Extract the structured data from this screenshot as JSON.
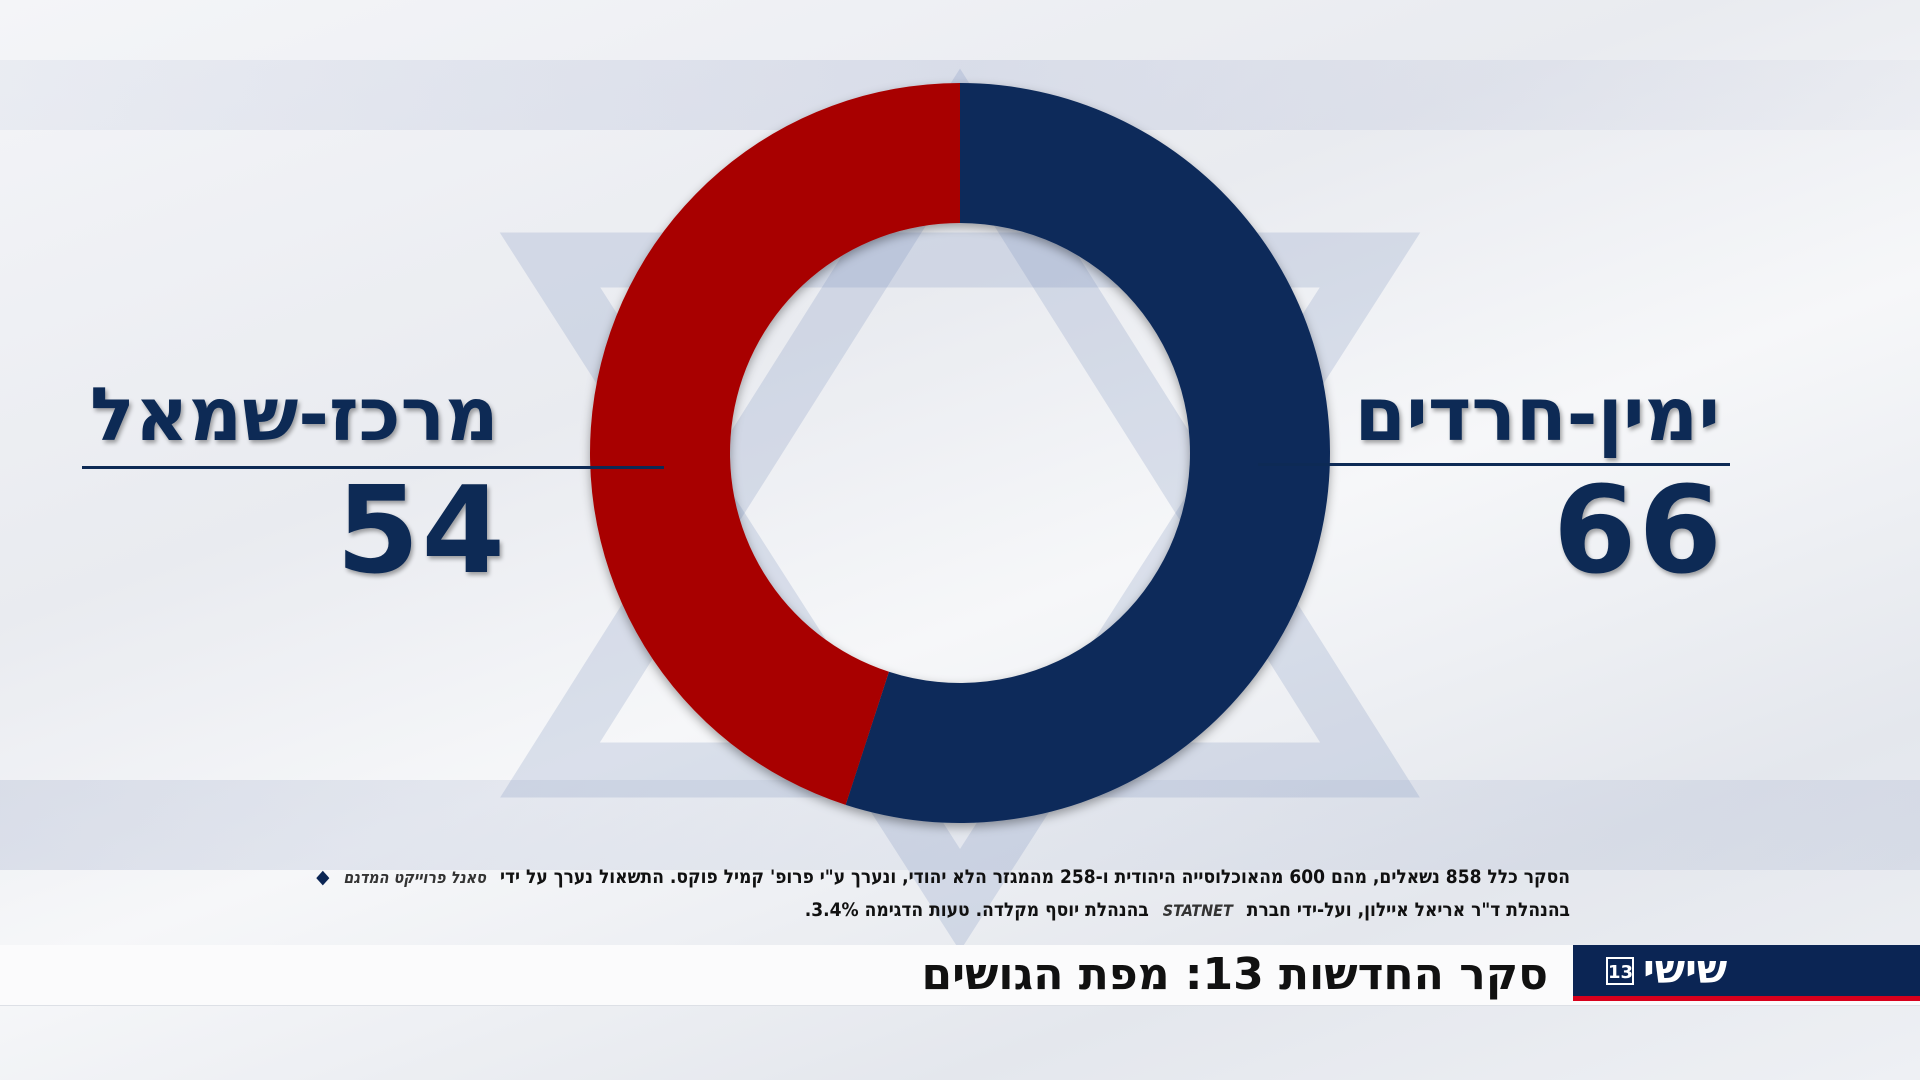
{
  "chart_data": {
    "type": "pie",
    "series": [
      {
        "name": "ימין-חרדים",
        "value": 66,
        "color": "#0d2a5a"
      },
      {
        "name": "מרכז-שמאל",
        "value": 54,
        "color": "#a80000"
      }
    ]
  },
  "labels": {
    "right_name": "ימין-חרדים",
    "right_value": "66",
    "left_name": "מרכז-שמאל",
    "left_value": "54"
  },
  "footnote": {
    "line1_text": "הסקר כלל 858 נשאלים, מהם 600 מהאוכלוסייה היהודית ו-258 מהמגזר הלא יהודי, ונערך ע\"י פרופ' קמיל פוקס. התשאול  נערך על ידי",
    "line1_logo": "סאנל פרוייקט המדגם",
    "line2_text_a": "בהנהלת ד\"ר אריאל איילון, ועל-ידי חברת",
    "line2_logo": "STATNET",
    "line2_text_b": "בהנהלת יוסף מקלדה. טעות הדגימה 3.4%."
  },
  "headline": "סקר החדשות 13: מפת הגושים",
  "channel": {
    "name": "שישי",
    "number": "13"
  }
}
